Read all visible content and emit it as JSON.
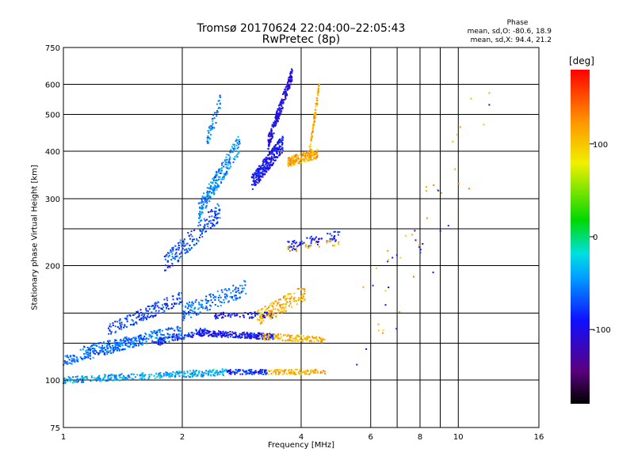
{
  "colors": {
    "frame": "#000000",
    "background": "#ffffff"
  },
  "phase_box": {
    "heading": "Phase",
    "o_line": "mean, sd,O: -80.6, 18.9",
    "x_line": "mean, sd,X:  94.4, 21.2"
  },
  "colorbar": {
    "unit": "[deg]",
    "range": [
      -180,
      180
    ],
    "ticks": [
      100,
      0,
      -100
    ],
    "colormap": "rainbow: black-purple-blue-cyan-green-yellow-orange-red"
  },
  "chart_data": {
    "type": "scatter",
    "title": "Tromsø 20170624 22:04:00–22:05:43",
    "subtitle": "RwPretec (8p)",
    "xlabel": "Frequency [MHz]",
    "ylabel": "Stationary phase Virtual Height [km]",
    "xscale": "log",
    "yscale": "log",
    "xlim": [
      1,
      16
    ],
    "ylim": [
      75,
      750
    ],
    "x_ticks": [
      1,
      2,
      4,
      6,
      8,
      10,
      16
    ],
    "x_tick_labels": [
      "1",
      "2",
      "4",
      "6",
      "8",
      "10",
      "16"
    ],
    "x_gridlines": [
      2,
      4,
      6,
      7,
      8,
      9,
      10
    ],
    "y_ticks": [
      75,
      100,
      200,
      300,
      400,
      500,
      600,
      750
    ],
    "y_tick_labels": [
      "75",
      "100",
      "200",
      "300",
      "400",
      "500",
      "600",
      "750"
    ],
    "y_gridlines": [
      100,
      125,
      150,
      200,
      250,
      300,
      400,
      500,
      600
    ],
    "grid": true,
    "color_by": "phase [deg]",
    "traces": [
      {
        "x_range": [
          1.0,
          2.6
        ],
        "height": 100,
        "height_end": 105,
        "phase": -40,
        "spread": 0.02,
        "density": 320
      },
      {
        "x_range": [
          2.6,
          3.3
        ],
        "height": 105,
        "height_end": 105,
        "phase": -80,
        "spread": 0.015,
        "density": 100
      },
      {
        "x_range": [
          3.3,
          4.6
        ],
        "height": 105,
        "height_end": 105,
        "phase": 110,
        "spread": 0.015,
        "density": 100
      },
      {
        "x_range": [
          1.0,
          1.6
        ],
        "height": 112,
        "height_end": 128,
        "phase": -60,
        "spread": 0.03,
        "density": 180
      },
      {
        "x_range": [
          1.1,
          2.0
        ],
        "height": 118,
        "height_end": 135,
        "phase": -60,
        "spread": 0.035,
        "density": 200
      },
      {
        "x_range": [
          1.3,
          2.0
        ],
        "height": 135,
        "height_end": 165,
        "phase": -75,
        "spread": 0.04,
        "density": 170
      },
      {
        "x_range": [
          1.7,
          2.3
        ],
        "height": 125,
        "height_end": 135,
        "phase": -80,
        "spread": 0.02,
        "density": 110
      },
      {
        "x_range": [
          2.2,
          3.4
        ],
        "height": 133,
        "height_end": 130,
        "phase": -95,
        "spread": 0.018,
        "density": 250
      },
      {
        "x_range": [
          3.2,
          4.6
        ],
        "height": 130,
        "height_end": 128,
        "phase": 110,
        "spread": 0.02,
        "density": 120
      },
      {
        "x_range": [
          2.0,
          2.9
        ],
        "height": 150,
        "height_end": 175,
        "phase": -60,
        "spread": 0.05,
        "density": 160
      },
      {
        "x_range": [
          2.4,
          3.4
        ],
        "height": 148,
        "height_end": 148,
        "phase": -95,
        "spread": 0.02,
        "density": 80
      },
      {
        "x_range": [
          3.1,
          4.1
        ],
        "height": 145,
        "height_end": 170,
        "phase": 110,
        "spread": 0.05,
        "density": 150
      },
      {
        "x_range": [
          1.8,
          2.5
        ],
        "height": 200,
        "height_end": 280,
        "phase": -70,
        "spread": 0.06,
        "density": 180
      },
      {
        "x_range": [
          2.2,
          2.8
        ],
        "height": 280,
        "height_end": 420,
        "phase": -50,
        "spread": 0.06,
        "density": 230
      },
      {
        "x_range": [
          2.3,
          2.5
        ],
        "height": 420,
        "height_end": 540,
        "phase": -50,
        "spread": 0.05,
        "density": 50
      },
      {
        "x_range": [
          3.0,
          3.6
        ],
        "height": 330,
        "height_end": 420,
        "phase": -95,
        "spread": 0.05,
        "density": 280
      },
      {
        "x_range": [
          3.3,
          3.8
        ],
        "height": 420,
        "height_end": 640,
        "phase": -100,
        "spread": 0.04,
        "density": 220
      },
      {
        "x_range": [
          3.7,
          4.4
        ],
        "height": 375,
        "height_end": 395,
        "phase": 115,
        "spread": 0.03,
        "density": 160
      },
      {
        "x_range": [
          4.2,
          4.45
        ],
        "height": 400,
        "height_end": 600,
        "phase": 110,
        "spread": 0.03,
        "density": 70
      },
      {
        "x_range": [
          3.7,
          5.0
        ],
        "height": 225,
        "height_end": 240,
        "phase": -90,
        "spread": 0.03,
        "density": 70
      },
      {
        "x_range": [
          3.6,
          5.1
        ],
        "height": 220,
        "height_end": 232,
        "phase": 110,
        "spread": 0.02,
        "density": 25
      },
      {
        "x_range": [
          5.5,
          12.5
        ],
        "height": 130,
        "height_end": 550,
        "phase": 110,
        "spread": 0.3,
        "density": 30
      },
      {
        "x_range": [
          5.5,
          12.5
        ],
        "height": 110,
        "height_end": 500,
        "phase": -100,
        "spread": 0.3,
        "density": 20
      }
    ]
  }
}
